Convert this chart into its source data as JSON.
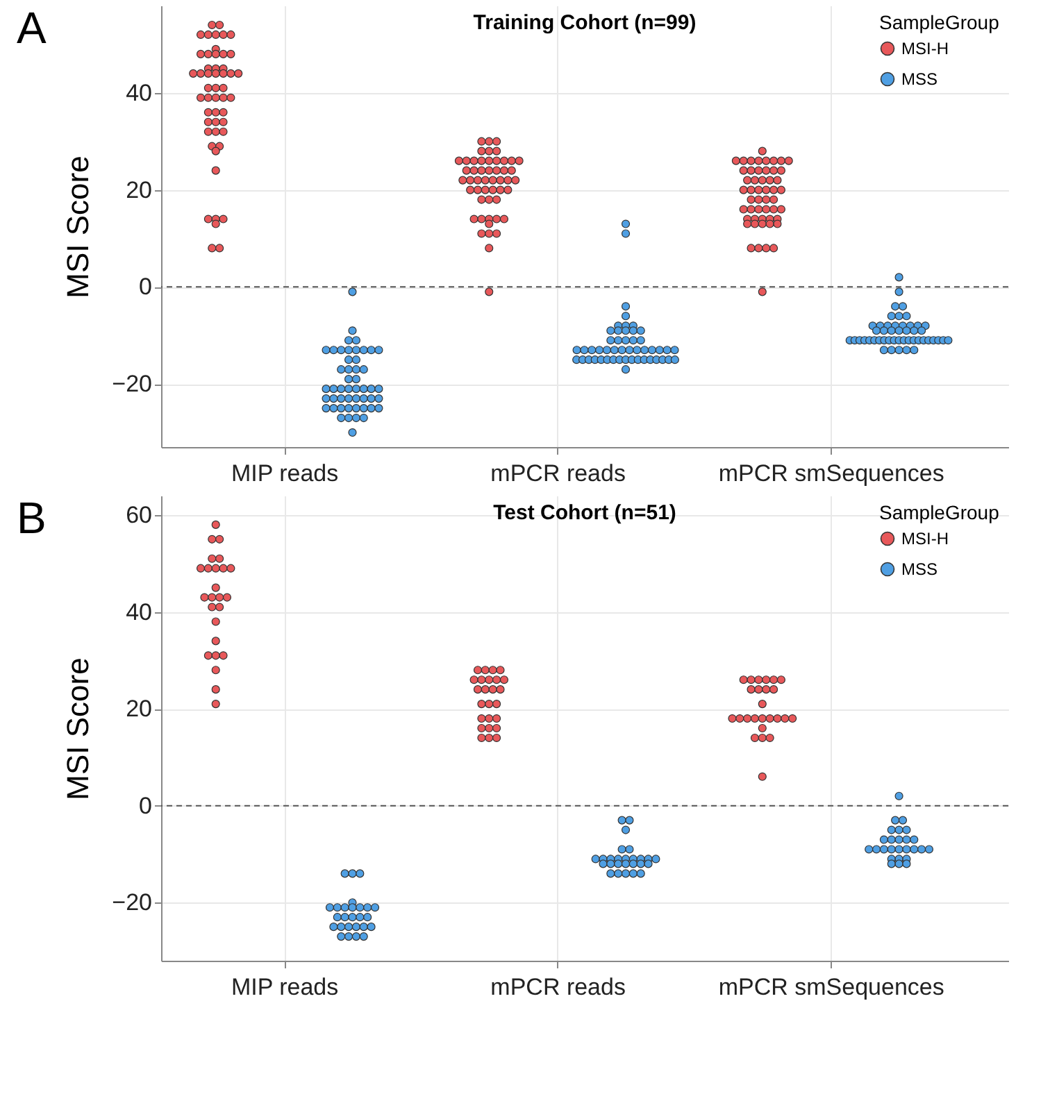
{
  "chart_data": [
    {
      "type": "scatter",
      "title": "Training Cohort (n=99)",
      "ylabel": "MSI Score",
      "legend_title": "SampleGroup",
      "legend": "top right",
      "grid": true,
      "marker": "circle",
      "annotations": [
        "A"
      ],
      "categories": [
        "MIP reads",
        "mPCR reads",
        "mPCR smSequences"
      ],
      "ylim": [
        -33,
        58
      ],
      "yticks": [
        -20,
        0,
        20,
        40
      ],
      "ref_lines": [
        {
          "axis": "y",
          "value": 0,
          "line_style": "dashed"
        }
      ],
      "series": [
        {
          "name": "MSI-H",
          "color": "#e8585a",
          "x": [
            "MIP reads",
            "MIP reads",
            "MIP reads",
            "MIP reads",
            "MIP reads",
            "MIP reads",
            "MIP reads",
            "MIP reads",
            "MIP reads",
            "MIP reads",
            "MIP reads",
            "MIP reads",
            "MIP reads",
            "MIP reads",
            "MIP reads",
            "MIP reads",
            "MIP reads",
            "MIP reads",
            "MIP reads",
            "MIP reads",
            "MIP reads",
            "MIP reads",
            "MIP reads",
            "MIP reads",
            "MIP reads",
            "MIP reads",
            "MIP reads",
            "MIP reads",
            "MIP reads",
            "MIP reads",
            "MIP reads",
            "MIP reads",
            "MIP reads",
            "MIP reads",
            "MIP reads",
            "MIP reads",
            "MIP reads",
            "MIP reads",
            "MIP reads",
            "MIP reads",
            "MIP reads",
            "MIP reads",
            "MIP reads",
            "MIP reads",
            "MIP reads",
            "MIP reads",
            "MIP reads",
            "MIP reads",
            "MIP reads",
            "MIP reads",
            "mPCR reads",
            "mPCR reads",
            "mPCR reads",
            "mPCR reads",
            "mPCR reads",
            "mPCR reads",
            "mPCR reads",
            "mPCR reads",
            "mPCR reads",
            "mPCR reads",
            "mPCR reads",
            "mPCR reads",
            "mPCR reads",
            "mPCR reads",
            "mPCR reads",
            "mPCR reads",
            "mPCR reads",
            "mPCR reads",
            "mPCR reads",
            "mPCR reads",
            "mPCR reads",
            "mPCR reads",
            "mPCR reads",
            "mPCR reads",
            "mPCR reads",
            "mPCR reads",
            "mPCR reads",
            "mPCR reads",
            "mPCR reads",
            "mPCR reads",
            "mPCR reads",
            "mPCR reads",
            "mPCR reads",
            "mPCR reads",
            "mPCR reads",
            "mPCR reads",
            "mPCR reads",
            "mPCR reads",
            "mPCR reads",
            "mPCR reads",
            "mPCR reads",
            "mPCR reads",
            "mPCR reads",
            "mPCR reads",
            "mPCR reads",
            "mPCR reads",
            "mPCR reads",
            "mPCR reads",
            "mPCR reads",
            "mPCR reads",
            "mPCR smSequences",
            "mPCR smSequences",
            "mPCR smSequences",
            "mPCR smSequences",
            "mPCR smSequences",
            "mPCR smSequences",
            "mPCR smSequences",
            "mPCR smSequences",
            "mPCR smSequences",
            "mPCR smSequences",
            "mPCR smSequences",
            "mPCR smSequences",
            "mPCR smSequences",
            "mPCR smSequences",
            "mPCR smSequences",
            "mPCR smSequences",
            "mPCR smSequences",
            "mPCR smSequences",
            "mPCR smSequences",
            "mPCR smSequences",
            "mPCR smSequences",
            "mPCR smSequences",
            "mPCR smSequences",
            "mPCR smSequences",
            "mPCR smSequences",
            "mPCR smSequences",
            "mPCR smSequences",
            "mPCR smSequences",
            "mPCR smSequences",
            "mPCR smSequences",
            "mPCR smSequences",
            "mPCR smSequences",
            "mPCR smSequences",
            "mPCR smSequences",
            "mPCR smSequences",
            "mPCR smSequences",
            "mPCR smSequences",
            "mPCR smSequences",
            "mPCR smSequences",
            "mPCR smSequences",
            "mPCR smSequences",
            "mPCR smSequences",
            "mPCR smSequences",
            "mPCR smSequences",
            "mPCR smSequences",
            "mPCR smSequences",
            "mPCR smSequences",
            "mPCR smSequences",
            "mPCR smSequences",
            "mPCR smSequences",
            "mPCR smSequences"
          ],
          "values": [
            54,
            54,
            52,
            52,
            52,
            52,
            52,
            49,
            48,
            48,
            48,
            48,
            48,
            45,
            45,
            45,
            44,
            44,
            44,
            44,
            44,
            44,
            44,
            41,
            41,
            41,
            39,
            39,
            39,
            39,
            39,
            36,
            36,
            36,
            34,
            34,
            34,
            32,
            32,
            32,
            29,
            29,
            28,
            24,
            14,
            14,
            14,
            13,
            8,
            8,
            30,
            30,
            30,
            28,
            28,
            28,
            26,
            26,
            26,
            26,
            26,
            26,
            26,
            26,
            26,
            24,
            24,
            24,
            24,
            24,
            24,
            24,
            22,
            22,
            22,
            22,
            22,
            22,
            22,
            22,
            20,
            20,
            20,
            20,
            20,
            20,
            18,
            18,
            18,
            14,
            14,
            14,
            14,
            14,
            13,
            11,
            11,
            11,
            8,
            -1,
            28,
            26,
            26,
            26,
            26,
            26,
            26,
            26,
            26,
            24,
            24,
            24,
            24,
            24,
            24,
            22,
            22,
            22,
            22,
            22,
            20,
            20,
            20,
            20,
            20,
            20,
            18,
            18,
            18,
            18,
            16,
            16,
            16,
            16,
            16,
            16,
            14,
            14,
            14,
            14,
            14,
            13,
            13,
            13,
            13,
            13,
            8,
            8,
            8,
            8,
            -1
          ]
        },
        {
          "name": "MSS",
          "color": "#4f9fe3",
          "x": [
            "MIP reads",
            "MIP reads",
            "MIP reads",
            "MIP reads",
            "MIP reads",
            "MIP reads",
            "MIP reads",
            "MIP reads",
            "MIP reads",
            "MIP reads",
            "MIP reads",
            "MIP reads",
            "MIP reads",
            "MIP reads",
            "MIP reads",
            "MIP reads",
            "MIP reads",
            "MIP reads",
            "MIP reads",
            "MIP reads",
            "MIP reads",
            "MIP reads",
            "MIP reads",
            "MIP reads",
            "MIP reads",
            "MIP reads",
            "MIP reads",
            "MIP reads",
            "MIP reads",
            "MIP reads",
            "MIP reads",
            "MIP reads",
            "MIP reads",
            "MIP reads",
            "MIP reads",
            "MIP reads",
            "MIP reads",
            "MIP reads",
            "MIP reads",
            "MIP reads",
            "MIP reads",
            "MIP reads",
            "MIP reads",
            "MIP reads",
            "MIP reads",
            "MIP reads",
            "MIP reads",
            "MIP reads",
            "MIP reads",
            "mPCR reads",
            "mPCR reads",
            "mPCR reads",
            "mPCR reads",
            "mPCR reads",
            "mPCR reads",
            "mPCR reads",
            "mPCR reads",
            "mPCR reads",
            "mPCR reads",
            "mPCR reads",
            "mPCR reads",
            "mPCR reads",
            "mPCR reads",
            "mPCR reads",
            "mPCR reads",
            "mPCR reads",
            "mPCR reads",
            "mPCR reads",
            "mPCR reads",
            "mPCR reads",
            "mPCR reads",
            "mPCR reads",
            "mPCR reads",
            "mPCR reads",
            "mPCR reads",
            "mPCR reads",
            "mPCR reads",
            "mPCR reads",
            "mPCR reads",
            "mPCR reads",
            "mPCR reads",
            "mPCR reads",
            "mPCR reads",
            "mPCR reads",
            "mPCR reads",
            "mPCR reads",
            "mPCR reads",
            "mPCR reads",
            "mPCR reads",
            "mPCR reads",
            "mPCR reads",
            "mPCR reads",
            "mPCR reads",
            "mPCR reads",
            "mPCR reads",
            "mPCR reads",
            "mPCR reads",
            "mPCR reads",
            "mPCR smSequences",
            "mPCR smSequences",
            "mPCR smSequences",
            "mPCR smSequences",
            "mPCR smSequences",
            "mPCR smSequences",
            "mPCR smSequences",
            "mPCR smSequences",
            "mPCR smSequences",
            "mPCR smSequences",
            "mPCR smSequences",
            "mPCR smSequences",
            "mPCR smSequences",
            "mPCR smSequences",
            "mPCR smSequences",
            "mPCR smSequences",
            "mPCR smSequences",
            "mPCR smSequences",
            "mPCR smSequences",
            "mPCR smSequences",
            "mPCR smSequences",
            "mPCR smSequences",
            "mPCR smSequences",
            "mPCR smSequences",
            "mPCR smSequences",
            "mPCR smSequences",
            "mPCR smSequences",
            "mPCR smSequences",
            "mPCR smSequences",
            "mPCR smSequences",
            "mPCR smSequences",
            "mPCR smSequences",
            "mPCR smSequences",
            "mPCR smSequences",
            "mPCR smSequences",
            "mPCR smSequences",
            "mPCR smSequences",
            "mPCR smSequences",
            "mPCR smSequences",
            "mPCR smSequences",
            "mPCR smSequences",
            "mPCR smSequences",
            "mPCR smSequences",
            "mPCR smSequences",
            "mPCR smSequences",
            "mPCR smSequences",
            "mPCR smSequences",
            "mPCR smSequences"
          ],
          "values": [
            -1,
            -9,
            -11,
            -11,
            -13,
            -13,
            -13,
            -13,
            -13,
            -13,
            -13,
            -13,
            -15,
            -15,
            -17,
            -17,
            -17,
            -17,
            -19,
            -19,
            -21,
            -21,
            -21,
            -21,
            -21,
            -21,
            -21,
            -21,
            -23,
            -23,
            -23,
            -23,
            -23,
            -23,
            -23,
            -23,
            -25,
            -25,
            -25,
            -25,
            -25,
            -25,
            -25,
            -25,
            -27,
            -27,
            -27,
            -27,
            -30,
            13,
            11,
            -4,
            -6,
            -8,
            -8,
            -8,
            -9,
            -9,
            -9,
            -9,
            -9,
            -11,
            -11,
            -11,
            -11,
            -11,
            -13,
            -13,
            -13,
            -13,
            -13,
            -13,
            -13,
            -13,
            -13,
            -13,
            -13,
            -13,
            -13,
            -13,
            -15,
            -15,
            -15,
            -15,
            -15,
            -15,
            -15,
            -15,
            -15,
            -15,
            -15,
            -15,
            -15,
            -15,
            -15,
            -15,
            -15,
            -17,
            2,
            -1,
            -4,
            -4,
            -6,
            -6,
            -6,
            -8,
            -8,
            -8,
            -8,
            -8,
            -8,
            -8,
            -8,
            -9,
            -9,
            -9,
            -9,
            -9,
            -9,
            -9,
            -11,
            -11,
            -11,
            -11,
            -11,
            -11,
            -11,
            -11,
            -11,
            -11,
            -11,
            -11,
            -11,
            -11,
            -11,
            -11,
            -11,
            -11,
            -11,
            -11,
            -11,
            -13,
            -13,
            -13,
            -13,
            -13
          ]
        }
      ]
    },
    {
      "type": "scatter",
      "title": "Test Cohort (n=51)",
      "ylabel": "MSI Score",
      "legend_title": "SampleGroup",
      "legend": "top right",
      "grid": true,
      "marker": "circle",
      "annotations": [
        "B"
      ],
      "categories": [
        "MIP reads",
        "mPCR reads",
        "mPCR smSequences"
      ],
      "ylim": [
        -32,
        64
      ],
      "yticks": [
        -20,
        0,
        20,
        40,
        60
      ],
      "ref_lines": [
        {
          "axis": "y",
          "value": 0,
          "line_style": "dashed"
        }
      ],
      "series": [
        {
          "name": "MSI-H",
          "color": "#e8585a",
          "x": [
            "MIP reads",
            "MIP reads",
            "MIP reads",
            "MIP reads",
            "MIP reads",
            "MIP reads",
            "MIP reads",
            "MIP reads",
            "MIP reads",
            "MIP reads",
            "MIP reads",
            "MIP reads",
            "MIP reads",
            "MIP reads",
            "MIP reads",
            "MIP reads",
            "MIP reads",
            "MIP reads",
            "MIP reads",
            "MIP reads",
            "MIP reads",
            "MIP reads",
            "MIP reads",
            "MIP reads",
            "MIP reads",
            "mPCR reads",
            "mPCR reads",
            "mPCR reads",
            "mPCR reads",
            "mPCR reads",
            "mPCR reads",
            "mPCR reads",
            "mPCR reads",
            "mPCR reads",
            "mPCR reads",
            "mPCR reads",
            "mPCR reads",
            "mPCR reads",
            "mPCR reads",
            "mPCR reads",
            "mPCR reads",
            "mPCR reads",
            "mPCR reads",
            "mPCR reads",
            "mPCR reads",
            "mPCR reads",
            "mPCR reads",
            "mPCR reads",
            "mPCR reads",
            "mPCR reads",
            "mPCR smSequences",
            "mPCR smSequences",
            "mPCR smSequences",
            "mPCR smSequences",
            "mPCR smSequences",
            "mPCR smSequences",
            "mPCR smSequences",
            "mPCR smSequences",
            "mPCR smSequences",
            "mPCR smSequences",
            "mPCR smSequences",
            "mPCR smSequences",
            "mPCR smSequences",
            "mPCR smSequences",
            "mPCR smSequences",
            "mPCR smSequences",
            "mPCR smSequences",
            "mPCR smSequences",
            "mPCR smSequences",
            "mPCR smSequences",
            "mPCR smSequences",
            "mPCR smSequences",
            "mPCR smSequences",
            "mPCR smSequences",
            "mPCR smSequences"
          ],
          "values": [
            58,
            55,
            55,
            51,
            51,
            49,
            49,
            49,
            49,
            49,
            45,
            43,
            43,
            43,
            43,
            41,
            41,
            38,
            34,
            31,
            31,
            31,
            28,
            24,
            21,
            28,
            28,
            28,
            28,
            26,
            26,
            26,
            26,
            26,
            24,
            24,
            24,
            24,
            21,
            21,
            21,
            18,
            18,
            18,
            16,
            16,
            16,
            14,
            14,
            14,
            26,
            26,
            26,
            26,
            26,
            26,
            24,
            24,
            24,
            24,
            21,
            18,
            18,
            18,
            18,
            18,
            18,
            18,
            18,
            18,
            16,
            14,
            14,
            14,
            6
          ]
        },
        {
          "name": "MSS",
          "color": "#4f9fe3",
          "x": [
            "MIP reads",
            "MIP reads",
            "MIP reads",
            "MIP reads",
            "MIP reads",
            "MIP reads",
            "MIP reads",
            "MIP reads",
            "MIP reads",
            "MIP reads",
            "MIP reads",
            "MIP reads",
            "MIP reads",
            "MIP reads",
            "MIP reads",
            "MIP reads",
            "MIP reads",
            "MIP reads",
            "MIP reads",
            "MIP reads",
            "MIP reads",
            "MIP reads",
            "MIP reads",
            "MIP reads",
            "MIP reads",
            "MIP reads",
            "mPCR reads",
            "mPCR reads",
            "mPCR reads",
            "mPCR reads",
            "mPCR reads",
            "mPCR reads",
            "mPCR reads",
            "mPCR reads",
            "mPCR reads",
            "mPCR reads",
            "mPCR reads",
            "mPCR reads",
            "mPCR reads",
            "mPCR reads",
            "mPCR reads",
            "mPCR reads",
            "mPCR reads",
            "mPCR reads",
            "mPCR reads",
            "mPCR reads",
            "mPCR reads",
            "mPCR reads",
            "mPCR reads",
            "mPCR reads",
            "mPCR reads",
            "mPCR reads",
            "mPCR smSequences",
            "mPCR smSequences",
            "mPCR smSequences",
            "mPCR smSequences",
            "mPCR smSequences",
            "mPCR smSequences",
            "mPCR smSequences",
            "mPCR smSequences",
            "mPCR smSequences",
            "mPCR smSequences",
            "mPCR smSequences",
            "mPCR smSequences",
            "mPCR smSequences",
            "mPCR smSequences",
            "mPCR smSequences",
            "mPCR smSequences",
            "mPCR smSequences",
            "mPCR smSequences",
            "mPCR smSequences",
            "mPCR smSequences",
            "mPCR smSequences",
            "mPCR smSequences",
            "mPCR smSequences",
            "mPCR smSequences",
            "mPCR smSequences",
            "mPCR smSequences"
          ],
          "values": [
            -14,
            -14,
            -14,
            -20,
            -21,
            -21,
            -21,
            -21,
            -21,
            -21,
            -21,
            -23,
            -23,
            -23,
            -23,
            -23,
            -25,
            -25,
            -25,
            -25,
            -25,
            -25,
            -27,
            -27,
            -27,
            -27,
            -3,
            -3,
            -5,
            -9,
            -9,
            -11,
            -11,
            -11,
            -11,
            -11,
            -11,
            -11,
            -11,
            -11,
            -12,
            -12,
            -12,
            -12,
            -12,
            -12,
            -12,
            -14,
            -14,
            -14,
            -14,
            -14,
            2,
            -3,
            -3,
            -5,
            -5,
            -5,
            -7,
            -7,
            -7,
            -7,
            -7,
            -9,
            -9,
            -9,
            -9,
            -9,
            -9,
            -9,
            -9,
            -9,
            -11,
            -11,
            -11,
            -12,
            -12,
            -12
          ]
        }
      ]
    }
  ]
}
